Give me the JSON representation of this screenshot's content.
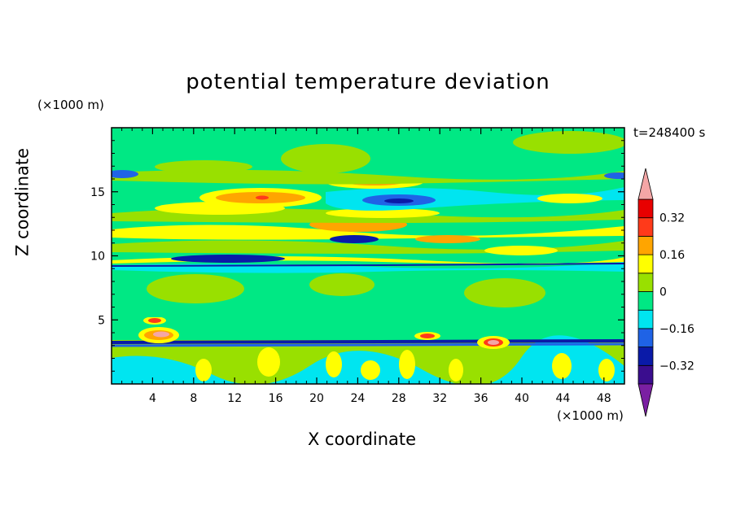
{
  "chart_data": {
    "type": "heatmap",
    "title": "potential temperature deviation",
    "xlabel": "X coordinate",
    "ylabel": "Z coordinate",
    "x_unit": "(×1000 m)",
    "z_unit": "(×1000 m)",
    "time_label": "t=248400 s",
    "xlim": [
      0,
      50
    ],
    "ylim": [
      0,
      20
    ],
    "x_ticks": [
      "4",
      "8",
      "12",
      "16",
      "20",
      "24",
      "28",
      "32",
      "36",
      "40",
      "44",
      "48"
    ],
    "y_ticks": [
      "5",
      "10",
      "15"
    ],
    "colorbar": {
      "levels": [
        -0.4,
        -0.32,
        -0.24,
        -0.16,
        -0.08,
        0,
        0.08,
        0.16,
        0.24,
        0.32,
        0.4
      ],
      "tick_labels": [
        "0.32",
        "0.16",
        "0",
        "−0.16",
        "−0.32"
      ],
      "colors": [
        "#7a1fa2",
        "#3a0d8e",
        "#0a1aa8",
        "#1f63e6",
        "#00e5f0",
        "#00e884",
        "#99e000",
        "#ffff00",
        "#ffa500",
        "#ff3a1a",
        "#e80000",
        "#f4a6a6"
      ]
    }
  }
}
